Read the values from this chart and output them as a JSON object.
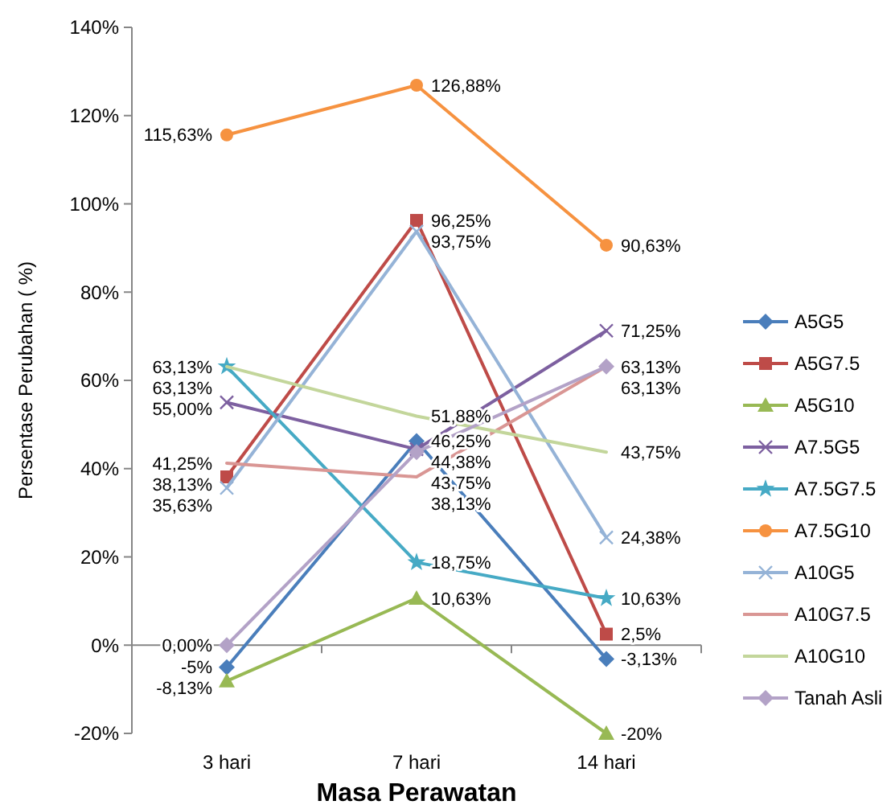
{
  "chart_data": {
    "type": "line",
    "xlabel": "Masa Perawatan",
    "ylabel": "Persentase Perubahan ( %)",
    "categories": [
      "3 hari",
      "7 hari",
      "14 hari"
    ],
    "ylim": [
      -20,
      140
    ],
    "yticks": [
      {
        "value": -20,
        "label": "-20%"
      },
      {
        "value": 0,
        "label": "0%"
      },
      {
        "value": 20,
        "label": "20%"
      },
      {
        "value": 40,
        "label": "40%"
      },
      {
        "value": 60,
        "label": "60%"
      },
      {
        "value": 80,
        "label": "80%"
      },
      {
        "value": 100,
        "label": "100%"
      },
      {
        "value": 120,
        "label": "120%"
      },
      {
        "value": 140,
        "label": "140%"
      }
    ],
    "legend": "right",
    "line_style": "solid",
    "series": [
      {
        "name": "A5G5",
        "color": "#4a7ebb",
        "marker": "diamond",
        "values": [
          -5,
          46.25,
          -3.13
        ],
        "value_labels": [
          "-5%",
          "46,25%",
          "-3,13%"
        ]
      },
      {
        "name": "A5G7.5",
        "color": "#be4b48",
        "marker": "square",
        "values": [
          38.13,
          96.25,
          2.5
        ],
        "value_labels": [
          "38,13%",
          "96,25%",
          "2,5%"
        ]
      },
      {
        "name": "A5G10",
        "color": "#98b954",
        "marker": "triangle",
        "values": [
          -8.13,
          10.63,
          -20
        ],
        "value_labels": [
          "-8,13%",
          "10,63%",
          "-20%"
        ]
      },
      {
        "name": "A7.5G5",
        "color": "#7d60a0",
        "marker": "cross",
        "values": [
          55,
          44.38,
          71.25
        ],
        "value_labels": [
          "55,00%",
          "44,38%",
          "71,25%"
        ]
      },
      {
        "name": "A7.5G7.5",
        "color": "#46aac5",
        "marker": "star",
        "values": [
          63.13,
          18.75,
          10.63
        ],
        "value_labels": [
          "63,13%",
          "18,75%",
          "10,63%"
        ]
      },
      {
        "name": "A7.5G10",
        "color": "#f69240",
        "marker": "circle",
        "values": [
          115.63,
          126.88,
          90.63
        ],
        "value_labels": [
          "115,63%",
          "126,88%",
          "90,63%"
        ]
      },
      {
        "name": "A10G5",
        "color": "#95b3d7",
        "marker": "cross",
        "values": [
          35.63,
          93.75,
          24.38
        ],
        "value_labels": [
          "35,63%",
          "93,75%",
          "24,38%"
        ]
      },
      {
        "name": "A10G7.5",
        "color": "#d99694",
        "marker": "none",
        "values": [
          41.25,
          38.13,
          63.13
        ],
        "value_labels": [
          "41,25%",
          "38,13%",
          "63,13%"
        ]
      },
      {
        "name": "A10G10",
        "color": "#c3d69b",
        "marker": "none",
        "values": [
          63.13,
          51.88,
          43.75
        ],
        "value_labels": [
          "63,13%",
          "51,88%",
          "43,75%"
        ]
      },
      {
        "name": "Tanah Asli",
        "color": "#b3a2c7",
        "marker": "diamond",
        "values": [
          0,
          43.75,
          63.13
        ],
        "value_labels": [
          "0,00%",
          "43,75%",
          "63,13%"
        ]
      }
    ]
  }
}
